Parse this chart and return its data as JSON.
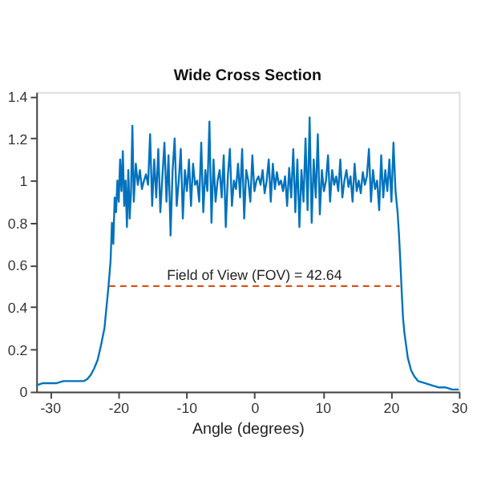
{
  "chart_data": {
    "type": "line",
    "title": "Wide Cross Section",
    "xlabel": "Angle (degrees)",
    "xlim": [
      -32,
      30
    ],
    "ylim": [
      0,
      1.42
    ],
    "xticks": [
      -30,
      -20,
      -10,
      0,
      10,
      20,
      30
    ],
    "yticks": [
      0,
      0.2,
      0.4,
      0.6,
      0.8,
      1,
      1.2,
      1.4
    ],
    "grid": false,
    "marker": "none",
    "annotations": [
      {
        "text": "Field of View (FOV) = 42.64",
        "x": 0,
        "y": 0.5
      }
    ],
    "series": [
      {
        "color": "#0072bd",
        "line_style": "solid",
        "x": [
          -32,
          -31,
          -30,
          -29,
          -28,
          -27,
          -26,
          -25,
          -24.5,
          -24,
          -23.5,
          -23,
          -22.5,
          -22,
          -21.7,
          -21.4,
          -21.1,
          -20.9,
          -20.7,
          -20.5,
          -20.3,
          -20.1,
          -19.9,
          -19.7,
          -19.5,
          -19.3,
          -19.1,
          -18.9,
          -18.7,
          -18.5,
          -18.3,
          -18.1,
          -17.9,
          -17.7,
          -17.4,
          -17.1,
          -16.8,
          -16.5,
          -16.2,
          -15.9,
          -15.6,
          -15.3,
          -15,
          -14.7,
          -14.4,
          -14.1,
          -13.8,
          -13.5,
          -13.2,
          -12.9,
          -12.6,
          -12.3,
          -12,
          -11.7,
          -11.4,
          -11.1,
          -10.8,
          -10.5,
          -10.2,
          -9.9,
          -9.6,
          -9.3,
          -9,
          -8.7,
          -8.4,
          -8.1,
          -7.8,
          -7.5,
          -7.2,
          -6.9,
          -6.6,
          -6.3,
          -6,
          -5.7,
          -5.4,
          -5.1,
          -4.8,
          -4.5,
          -4.2,
          -3.9,
          -3.6,
          -3.3,
          -3,
          -2.7,
          -2.4,
          -2.1,
          -1.8,
          -1.5,
          -1.2,
          -0.9,
          -0.6,
          -0.3,
          0,
          0.3,
          0.6,
          0.9,
          1.2,
          1.5,
          1.8,
          2.1,
          2.4,
          2.7,
          3,
          3.3,
          3.6,
          3.9,
          4.2,
          4.5,
          4.8,
          5.1,
          5.4,
          5.7,
          6,
          6.3,
          6.6,
          6.9,
          7.2,
          7.5,
          7.8,
          8.1,
          8.4,
          8.7,
          9,
          9.3,
          9.6,
          9.9,
          10.2,
          10.5,
          10.8,
          11.1,
          11.4,
          11.7,
          12,
          12.3,
          12.6,
          12.9,
          13.2,
          13.5,
          13.8,
          14.1,
          14.4,
          14.7,
          15,
          15.3,
          15.6,
          15.9,
          16.2,
          16.5,
          16.8,
          17.1,
          17.4,
          17.7,
          18,
          18.3,
          18.6,
          18.9,
          19.2,
          19.5,
          19.8,
          20.1,
          20.4,
          20.7,
          21,
          21.2,
          21.4,
          21.6,
          21.8,
          22,
          22.5,
          23,
          23.5,
          24,
          25,
          26,
          27,
          28,
          29,
          30
        ],
        "values": [
          0.03,
          0.04,
          0.04,
          0.04,
          0.05,
          0.05,
          0.05,
          0.05,
          0.06,
          0.08,
          0.11,
          0.15,
          0.22,
          0.3,
          0.4,
          0.5,
          0.62,
          0.8,
          0.7,
          0.92,
          0.85,
          1.0,
          0.9,
          1.1,
          0.95,
          1.14,
          0.88,
          1.0,
          0.78,
          1.05,
          0.82,
          0.95,
          1.26,
          0.9,
          1.08,
          0.98,
          1.05,
          0.96,
          1.0,
          1.03,
          0.98,
          1.22,
          0.88,
          1.1,
          0.92,
          1.15,
          0.85,
          1.02,
          1.18,
          0.9,
          1.12,
          0.74,
          1.05,
          1.2,
          0.88,
          1.0,
          1.15,
          0.82,
          1.05,
          0.95,
          1.1,
          0.88,
          1.08,
          0.98,
          1.0,
          0.9,
          1.18,
          0.85,
          1.05,
          0.95,
          1.28,
          0.8,
          1.1,
          0.9,
          1.0,
          1.05,
          0.92,
          1.12,
          0.78,
          1.02,
          1.15,
          0.88,
          1.0,
          0.96,
          1.08,
          0.92,
          1.15,
          0.82,
          1.05,
          1.0,
          0.9,
          1.12,
          0.95,
          1.0,
          1.02,
          0.98,
          1.05,
          0.94,
          1.0,
          1.1,
          0.9,
          1.08,
          0.96,
          1.04,
          0.98,
          1.0,
          0.95,
          1.02,
          0.88,
          1.06,
          0.92,
          1.15,
          0.85,
          1.1,
          0.78,
          1.05,
          0.9,
          1.2,
          0.86,
          1.3,
          0.8,
          1.1,
          0.92,
          1.22,
          0.84,
          1.05,
          0.95,
          1.0,
          1.12,
          0.9,
          1.05,
          0.98,
          1.02,
          0.95,
          1.1,
          0.92,
          1.0,
          1.05,
          0.97,
          1.02,
          0.9,
          1.08,
          0.95,
          1.0,
          0.94,
          1.04,
          0.98,
          1.02,
          1.15,
          0.9,
          1.05,
          0.96,
          1.0,
          0.86,
          1.12,
          0.92,
          1.05,
          0.95,
          1.1,
          0.9,
          1.18,
          0.95,
          0.85,
          0.75,
          0.62,
          0.48,
          0.35,
          0.28,
          0.16,
          0.1,
          0.07,
          0.05,
          0.04,
          0.03,
          0.02,
          0.02,
          0.01,
          0.01
        ]
      },
      {
        "color": "#d95319",
        "line_style": "dashed",
        "x": [
          -21.32,
          21.32
        ],
        "values": [
          0.5,
          0.5
        ]
      }
    ]
  }
}
